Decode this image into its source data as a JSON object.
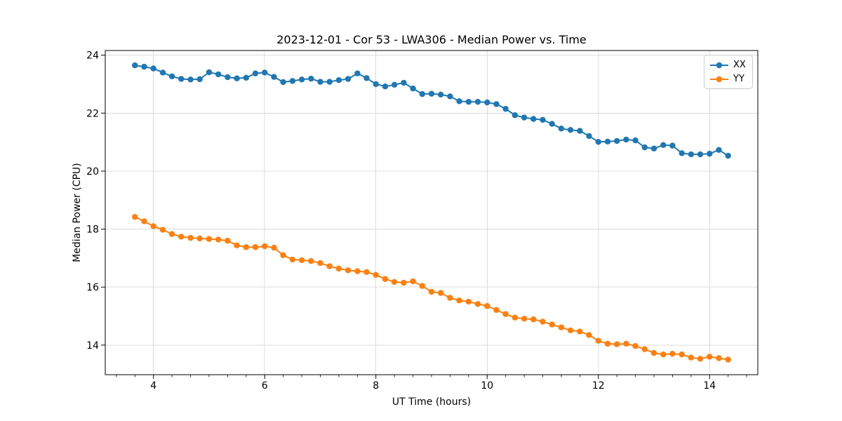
{
  "chart_data": {
    "type": "line",
    "title": "2023-12-01 - Cor 53 - LWA306 - Median Power vs. Time",
    "xlabel": "UT Time (hours)",
    "ylabel": "Median Power (CPU)",
    "xlim": [
      3.133,
      14.867
    ],
    "ylim": [
      12.98,
      24.16
    ],
    "xticks": [
      4,
      6,
      8,
      10,
      12,
      14
    ],
    "yticks": [
      14,
      16,
      18,
      20,
      22,
      24
    ],
    "x_minor_tick_step": 0.3333,
    "grid": true,
    "grid_color": "#dcdcdc",
    "legend_position": "upper right",
    "x": [
      3.667,
      3.833,
      4.0,
      4.167,
      4.333,
      4.5,
      4.667,
      4.833,
      5.0,
      5.167,
      5.333,
      5.5,
      5.667,
      5.833,
      6.0,
      6.167,
      6.333,
      6.5,
      6.667,
      6.833,
      7.0,
      7.167,
      7.333,
      7.5,
      7.667,
      7.833,
      8.0,
      8.167,
      8.333,
      8.5,
      8.667,
      8.833,
      9.0,
      9.167,
      9.333,
      9.5,
      9.667,
      9.833,
      10.0,
      10.167,
      10.333,
      10.5,
      10.667,
      10.833,
      11.0,
      11.167,
      11.333,
      11.5,
      11.667,
      11.833,
      12.0,
      12.167,
      12.333,
      12.5,
      12.667,
      12.833,
      13.0,
      13.167,
      13.333,
      13.5,
      13.667,
      13.833,
      14.0,
      14.167,
      14.333
    ],
    "series": [
      {
        "name": "XX",
        "color": "#1f77b4",
        "values": [
          23.65,
          23.6,
          23.54,
          23.4,
          23.27,
          23.18,
          23.16,
          23.17,
          23.41,
          23.34,
          23.24,
          23.2,
          23.22,
          23.37,
          23.4,
          23.25,
          23.07,
          23.11,
          23.16,
          23.19,
          23.08,
          23.08,
          23.14,
          23.18,
          23.37,
          23.21,
          23.0,
          22.92,
          22.98,
          23.05,
          22.85,
          22.66,
          22.67,
          22.64,
          22.58,
          22.41,
          22.39,
          22.39,
          22.37,
          22.31,
          22.15,
          21.93,
          21.85,
          21.8,
          21.77,
          21.63,
          21.47,
          21.42,
          21.39,
          21.21,
          21.01,
          21.02,
          21.04,
          21.09,
          21.06,
          20.82,
          20.78,
          20.9,
          20.88,
          20.62,
          20.58,
          20.58,
          20.6,
          20.73,
          20.53
        ]
      },
      {
        "name": "YY",
        "color": "#ff7f0e",
        "values": [
          18.42,
          18.27,
          18.1,
          17.98,
          17.83,
          17.74,
          17.7,
          17.68,
          17.66,
          17.64,
          17.6,
          17.44,
          17.38,
          17.38,
          17.41,
          17.36,
          17.1,
          16.95,
          16.93,
          16.9,
          16.83,
          16.72,
          16.64,
          16.58,
          16.55,
          16.52,
          16.42,
          16.28,
          16.18,
          16.15,
          16.2,
          16.04,
          15.84,
          15.8,
          15.63,
          15.54,
          15.5,
          15.42,
          15.35,
          15.21,
          15.07,
          14.95,
          14.91,
          14.89,
          14.81,
          14.71,
          14.61,
          14.51,
          14.47,
          14.35,
          14.15,
          14.05,
          14.03,
          14.05,
          13.97,
          13.86,
          13.73,
          13.68,
          13.7,
          13.68,
          13.57,
          13.53,
          13.6,
          13.55,
          13.5
        ]
      }
    ]
  }
}
